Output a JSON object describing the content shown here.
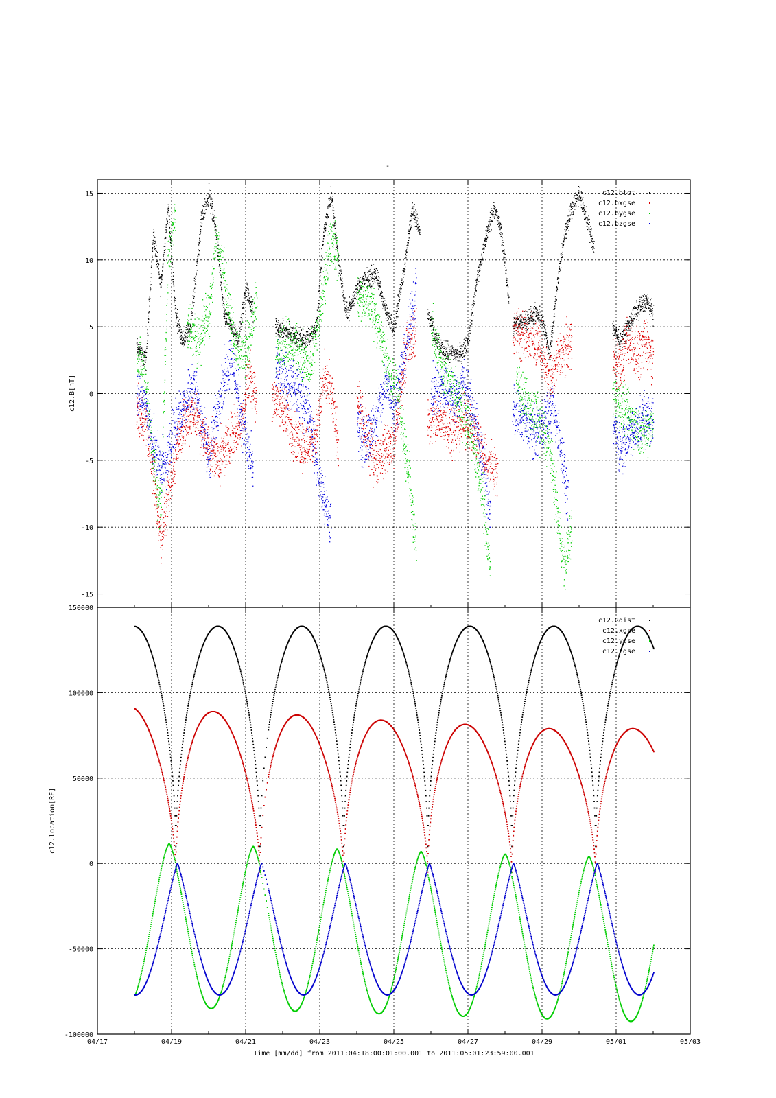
{
  "page": {
    "top_mark": "-"
  },
  "chart_data": [
    {
      "type": "scatter",
      "ylabel": "c12.B[nT]",
      "ylim": [
        -16,
        16
      ],
      "yticks": [
        15,
        10,
        5,
        0,
        -5,
        -10,
        -15
      ],
      "legend_position": "top-right",
      "grid": true,
      "series": [
        {
          "name": "c12.btot",
          "color": "#000000",
          "segments": [
            [
              [
                18.05,
                3.5
              ],
              [
                18.3,
                2.5
              ],
              [
                18.5,
                12
              ],
              [
                18.7,
                8
              ],
              [
                18.9,
                14
              ],
              [
                19.1,
                6
              ],
              [
                19.3,
                4
              ],
              [
                19.5,
                5
              ],
              [
                19.8,
                13
              ],
              [
                20.0,
                15
              ],
              [
                20.2,
                12
              ],
              [
                20.4,
                6
              ],
              [
                20.6,
                5
              ],
              [
                20.8,
                4
              ],
              [
                21.0,
                8
              ],
              [
                21.2,
                6
              ]
            ],
            [
              [
                21.8,
                5
              ],
              [
                22.2,
                4.5
              ],
              [
                22.6,
                4
              ],
              [
                22.9,
                5
              ],
              [
                23.1,
                12
              ],
              [
                23.3,
                15
              ],
              [
                23.5,
                10
              ],
              [
                23.7,
                6
              ],
              [
                23.9,
                7
              ],
              [
                24.0,
                8
              ],
              [
                24.2,
                8.5
              ],
              [
                24.5,
                9
              ],
              [
                24.8,
                6
              ],
              [
                25.0,
                5
              ],
              [
                25.3,
                10
              ],
              [
                25.5,
                14
              ],
              [
                25.7,
                12
              ]
            ],
            [
              [
                25.9,
                6
              ],
              [
                26.2,
                3.5
              ],
              [
                26.5,
                3
              ],
              [
                26.8,
                3
              ],
              [
                27.0,
                4
              ],
              [
                27.2,
                8
              ],
              [
                27.5,
                12
              ],
              [
                27.7,
                14
              ],
              [
                27.9,
                12
              ],
              [
                28.1,
                7
              ]
            ],
            [
              [
                28.2,
                5
              ],
              [
                28.5,
                5.5
              ],
              [
                28.8,
                6
              ],
              [
                29.0,
                5.5
              ],
              [
                29.2,
                3
              ],
              [
                29.4,
                8
              ],
              [
                29.6,
                12
              ],
              [
                29.8,
                14
              ],
              [
                30.0,
                15
              ],
              [
                30.2,
                13
              ],
              [
                30.4,
                11
              ]
            ],
            [
              [
                30.9,
                5
              ],
              [
                31.1,
                4
              ],
              [
                31.3,
                5
              ],
              [
                31.6,
                6.5
              ],
              [
                31.8,
                7
              ],
              [
                32.0,
                6
              ]
            ]
          ]
        },
        {
          "name": "c12.bxgse",
          "color": "#dd0000",
          "segments": [
            [
              [
                18.05,
                -1.5
              ],
              [
                18.3,
                -2
              ],
              [
                18.5,
                -6
              ],
              [
                18.7,
                -11
              ],
              [
                18.9,
                -8
              ],
              [
                19.2,
                -3
              ],
              [
                19.4,
                -2
              ],
              [
                19.6,
                -1
              ],
              [
                19.8,
                -3
              ],
              [
                20.0,
                -4
              ],
              [
                20.3,
                -5
              ],
              [
                20.6,
                -3
              ],
              [
                20.9,
                -2
              ],
              [
                21.1,
                2
              ],
              [
                21.3,
                -1
              ]
            ],
            [
              [
                21.7,
                0
              ],
              [
                22.0,
                -1
              ],
              [
                22.3,
                -3
              ],
              [
                22.6,
                -4
              ],
              [
                22.9,
                -3
              ],
              [
                23.1,
                1
              ],
              [
                23.3,
                0
              ],
              [
                23.5,
                -4
              ]
            ],
            [
              [
                24.0,
                0
              ],
              [
                24.2,
                -3
              ],
              [
                24.5,
                -5
              ],
              [
                24.8,
                -4
              ],
              [
                25.0,
                -4
              ],
              [
                25.3,
                3
              ],
              [
                25.6,
                5
              ]
            ],
            [
              [
                25.9,
                -2
              ],
              [
                26.3,
                -2
              ],
              [
                26.6,
                -2.5
              ],
              [
                26.9,
                -2
              ],
              [
                27.2,
                -3
              ],
              [
                27.5,
                -5
              ],
              [
                27.8,
                -6
              ]
            ],
            [
              [
                28.2,
                5
              ],
              [
                28.5,
                4.5
              ],
              [
                28.8,
                4
              ],
              [
                29.0,
                3
              ],
              [
                29.2,
                1
              ],
              [
                29.5,
                3
              ],
              [
                29.8,
                4
              ]
            ],
            [
              [
                30.9,
                3
              ],
              [
                31.1,
                2
              ],
              [
                31.3,
                4
              ],
              [
                31.6,
                3
              ],
              [
                31.8,
                4
              ],
              [
                32.0,
                2.5
              ]
            ]
          ]
        },
        {
          "name": "c12.bygse",
          "color": "#00cc00",
          "segments": [
            [
              [
                18.05,
                3
              ],
              [
                18.3,
                1
              ],
              [
                18.5,
                -5
              ],
              [
                18.7,
                -9
              ],
              [
                18.9,
                10
              ],
              [
                19.1,
                14
              ]
            ],
            [
              [
                19.4,
                5
              ],
              [
                19.7,
                4
              ],
              [
                20.0,
                6
              ],
              [
                20.2,
                12
              ],
              [
                20.4,
                9
              ],
              [
                20.6,
                5
              ],
              [
                20.8,
                3
              ],
              [
                21.1,
                4
              ],
              [
                21.3,
                8
              ]
            ],
            [
              [
                21.8,
                3
              ],
              [
                22.1,
                4
              ],
              [
                22.4,
                3
              ],
              [
                22.7,
                2
              ],
              [
                22.9,
                4
              ],
              [
                23.1,
                8
              ],
              [
                23.3,
                12
              ],
              [
                23.5,
                10
              ]
            ],
            [
              [
                24.0,
                7
              ],
              [
                24.3,
                7
              ],
              [
                24.5,
                6
              ],
              [
                24.8,
                2
              ],
              [
                25.1,
                0
              ],
              [
                25.4,
                -6
              ],
              [
                25.6,
                -12
              ]
            ],
            [
              [
                26.0,
                5
              ],
              [
                26.3,
                2
              ],
              [
                26.5,
                1
              ],
              [
                26.8,
                -1
              ],
              [
                27.1,
                -3
              ],
              [
                27.4,
                -8
              ],
              [
                27.6,
                -13
              ]
            ],
            [
              [
                28.3,
                1
              ],
              [
                28.6,
                -1
              ],
              [
                28.9,
                -2
              ],
              [
                29.2,
                -4
              ],
              [
                29.4,
                -9
              ],
              [
                29.6,
                -13
              ],
              [
                29.8,
                -10
              ]
            ],
            [
              [
                30.9,
                0
              ],
              [
                31.1,
                -1
              ],
              [
                31.4,
                -2
              ],
              [
                31.7,
                -3
              ],
              [
                32.0,
                -2
              ]
            ]
          ]
        },
        {
          "name": "c12.bzgse",
          "color": "#0000dd",
          "segments": [
            [
              [
                18.05,
                0
              ],
              [
                18.3,
                -1
              ],
              [
                18.5,
                -4
              ],
              [
                18.8,
                -6
              ],
              [
                19.0,
                -3
              ],
              [
                19.3,
                -1
              ],
              [
                19.6,
                1
              ],
              [
                19.8,
                -2
              ],
              [
                20.0,
                -5
              ],
              [
                20.3,
                0
              ],
              [
                20.6,
                3
              ],
              [
                20.9,
                -2
              ],
              [
                21.2,
                -6
              ]
            ],
            [
              [
                21.8,
                2
              ],
              [
                22.1,
                1
              ],
              [
                22.4,
                0
              ],
              [
                22.7,
                -1
              ],
              [
                22.9,
                -5
              ],
              [
                23.1,
                -8
              ],
              [
                23.3,
                -10
              ]
            ],
            [
              [
                24.0,
                -2
              ],
              [
                24.2,
                -4
              ],
              [
                24.5,
                -2
              ],
              [
                24.8,
                1
              ],
              [
                25.0,
                -1
              ],
              [
                25.3,
                3
              ],
              [
                25.6,
                8
              ]
            ],
            [
              [
                26.0,
                0
              ],
              [
                26.3,
                0.5
              ],
              [
                26.6,
                -0.5
              ],
              [
                26.9,
                1
              ],
              [
                27.1,
                -1
              ],
              [
                27.4,
                -5
              ],
              [
                27.6,
                -9
              ]
            ],
            [
              [
                28.2,
                -1
              ],
              [
                28.5,
                -2
              ],
              [
                28.8,
                -3
              ],
              [
                29.0,
                -2
              ],
              [
                29.3,
                -1
              ],
              [
                29.5,
                -4
              ],
              [
                29.7,
                -8
              ]
            ],
            [
              [
                30.9,
                -3
              ],
              [
                31.1,
                -4
              ],
              [
                31.4,
                -3
              ],
              [
                31.7,
                -2
              ],
              [
                32.0,
                -2
              ]
            ]
          ]
        }
      ]
    },
    {
      "type": "scatter",
      "ylabel": "c12.location[RE]",
      "ylim": [
        -100000,
        150000
      ],
      "yticks": [
        150000,
        100000,
        50000,
        0,
        -50000,
        -100000
      ],
      "xlabel": "Time [mm/dd]  from 2011:04:18:00:01:00.001  to  2011:05:01:23:59:00.001",
      "xlim": [
        17,
        33
      ],
      "xticks": [
        17,
        19,
        21,
        23,
        25,
        27,
        29,
        31,
        33
      ],
      "xticklabels": [
        "04/17",
        "04/19",
        "04/21",
        "04/23",
        "04/25",
        "04/27",
        "04/29",
        "05/01",
        "05/03"
      ],
      "legend_position": "top-right",
      "grid": true,
      "orbit": {
        "x_start": 18.0,
        "x_end": 32.0,
        "period_days": 2.2667,
        "perigee_days": [
          19.1,
          21.37,
          23.63,
          25.9,
          28.17,
          30.43
        ],
        "gap_days": [
          21.4,
          21.6
        ]
      },
      "series": [
        {
          "name": "c12.Rdist",
          "color": "#000000",
          "apogee": 139000,
          "perigee": 10000
        },
        {
          "name": "c12.xgse",
          "color": "#cc0000",
          "apogee_values": [
            92000,
            89000,
            87000,
            84000,
            81500,
            79000
          ],
          "min": -5000
        },
        {
          "name": "c12.ygse",
          "color": "#00cc00",
          "peak": 10000,
          "min": -85000
        },
        {
          "name": "c12.zgse",
          "color": "#0000cc",
          "peak": 0,
          "min": -77000
        }
      ]
    }
  ]
}
